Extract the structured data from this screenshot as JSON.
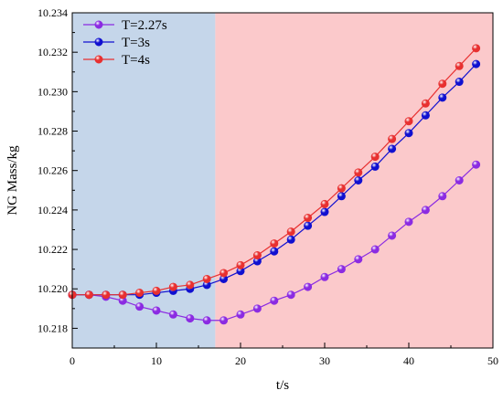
{
  "chart_data": {
    "type": "line",
    "title": "",
    "xlabel": "t/s",
    "ylabel": "NG Mass/kg",
    "xlim": [
      0,
      50
    ],
    "ylim": [
      10.217,
      10.234
    ],
    "x_ticks": [
      0,
      10,
      20,
      30,
      40,
      50
    ],
    "y_ticks": [
      10.218,
      10.22,
      10.222,
      10.224,
      10.226,
      10.228,
      10.23,
      10.232,
      10.234
    ],
    "x_tick_labels": [
      "0",
      "10",
      "20",
      "30",
      "40",
      "50"
    ],
    "y_tick_labels": [
      "10.218",
      "10.220",
      "10.222",
      "10.224",
      "10.226",
      "10.228",
      "10.230",
      "10.232",
      "10.234"
    ],
    "grid": false,
    "legend_position": "top-left",
    "background_regions": [
      {
        "x_start": 0,
        "x_end": 17,
        "color": "#c5d6ea"
      },
      {
        "x_start": 17,
        "x_end": 50,
        "color": "#fbc9cb"
      }
    ],
    "x": [
      0,
      2,
      4,
      6,
      8,
      10,
      12,
      14,
      16,
      18,
      20,
      22,
      24,
      26,
      28,
      30,
      32,
      34,
      36,
      38,
      40,
      42,
      44,
      46,
      48
    ],
    "series": [
      {
        "name": "T=2.27s",
        "color": "#8b2be2",
        "values": [
          10.2197,
          10.2197,
          10.2196,
          10.2194,
          10.2191,
          10.2189,
          10.2187,
          10.2185,
          10.2184,
          10.2184,
          10.2187,
          10.219,
          10.2194,
          10.2197,
          10.2201,
          10.2206,
          10.221,
          10.2215,
          10.222,
          10.2227,
          10.2234,
          10.224,
          10.2247,
          10.2255,
          10.2263
        ]
      },
      {
        "name": "T=3s",
        "color": "#1010d0",
        "values": [
          10.2197,
          10.2197,
          10.2197,
          10.2197,
          10.2197,
          10.2198,
          10.2199,
          10.22,
          10.2202,
          10.2205,
          10.2209,
          10.2214,
          10.2219,
          10.2225,
          10.2232,
          10.2239,
          10.2247,
          10.2255,
          10.2262,
          10.2271,
          10.2279,
          10.2288,
          10.2297,
          10.2305,
          10.2314
        ]
      },
      {
        "name": "T=4s",
        "color": "#e83030",
        "values": [
          10.2197,
          10.2197,
          10.2197,
          10.2197,
          10.2198,
          10.2199,
          10.2201,
          10.2202,
          10.2205,
          10.2208,
          10.2212,
          10.2217,
          10.2223,
          10.2229,
          10.2236,
          10.2243,
          10.2251,
          10.2259,
          10.2267,
          10.2276,
          10.2285,
          10.2294,
          10.2304,
          10.2313,
          10.2322
        ]
      }
    ]
  }
}
